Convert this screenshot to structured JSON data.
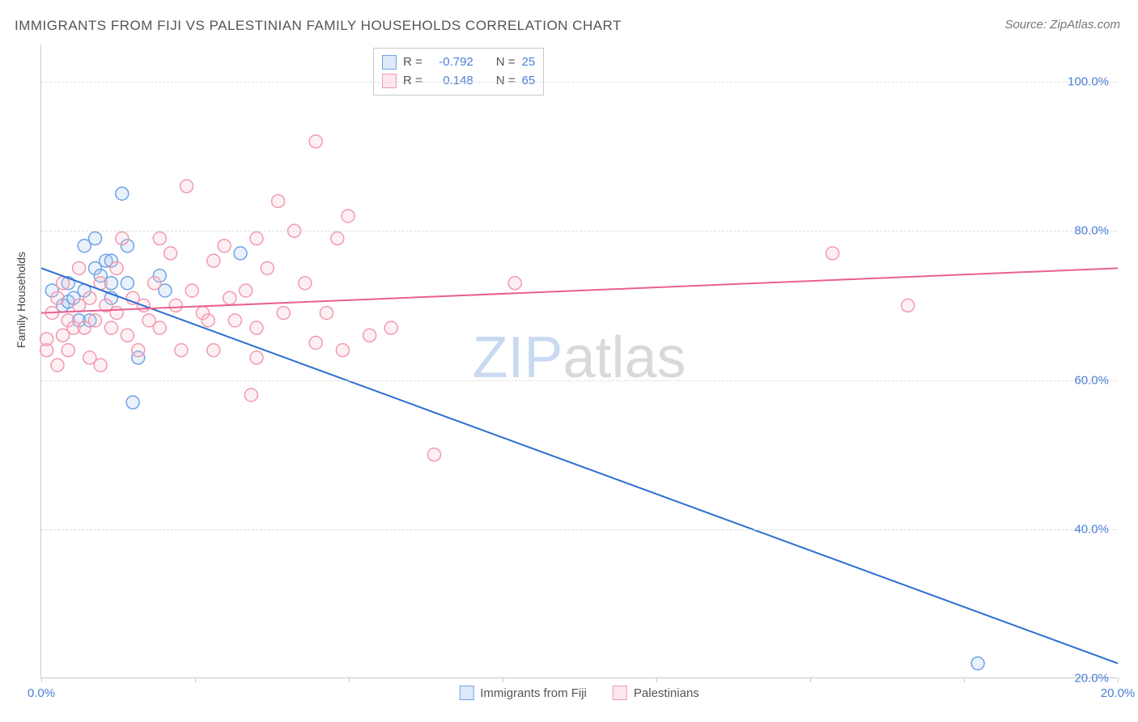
{
  "title": "IMMIGRANTS FROM FIJI VS PALESTINIAN FAMILY HOUSEHOLDS CORRELATION CHART",
  "source": "Source: ZipAtlas.com",
  "ylabel": "Family Households",
  "watermark": {
    "text_a": "ZIP",
    "text_b": "atlas",
    "color_a": "#c9d9f2",
    "color_b": "#d9d9d9"
  },
  "chart": {
    "type": "scatter",
    "background": "#ffffff",
    "grid_color": "#dcdcdc",
    "axis_color": "#c9c9c9",
    "xlim": [
      0,
      20
    ],
    "ylim": [
      20,
      105
    ],
    "marker_radius": 8,
    "x_ticks_major": [
      0,
      20
    ],
    "x_ticks_minor": [
      2.86,
      5.71,
      8.57,
      11.43,
      14.29,
      17.14
    ],
    "x_tick_labels": [
      {
        "v": 0,
        "label": "0.0%"
      },
      {
        "v": 20,
        "label": "20.0%"
      }
    ],
    "y_gridlines": [
      40,
      60,
      80,
      100
    ],
    "y_tick_labels": [
      {
        "v": 40,
        "label": "40.0%"
      },
      {
        "v": 60,
        "label": "60.0%"
      },
      {
        "v": 80,
        "label": "80.0%"
      },
      {
        "v": 100,
        "label": "100.0%"
      },
      {
        "v": 20,
        "label": "20.0%"
      }
    ],
    "series": [
      {
        "name": "Immigrants from Fiji",
        "color_stroke": "#6fa3e5",
        "color_fill": "#a9c8ef",
        "R": "-0.792",
        "N": "25",
        "trend": {
          "x1": 0,
          "y1": 75,
          "x2": 20,
          "y2": 22,
          "color": "#2c6fd1"
        },
        "points": [
          [
            0.2,
            72
          ],
          [
            0.4,
            70
          ],
          [
            0.5,
            70.5
          ],
          [
            0.5,
            73
          ],
          [
            0.6,
            71
          ],
          [
            0.7,
            68
          ],
          [
            0.8,
            78
          ],
          [
            0.8,
            72
          ],
          [
            1.0,
            75
          ],
          [
            1.0,
            79
          ],
          [
            1.1,
            74
          ],
          [
            1.2,
            76
          ],
          [
            1.3,
            71
          ],
          [
            1.3,
            73
          ],
          [
            1.3,
            76
          ],
          [
            1.5,
            85
          ],
          [
            1.6,
            78
          ],
          [
            1.6,
            73
          ],
          [
            1.8,
            63
          ],
          [
            2.2,
            74
          ],
          [
            2.3,
            72
          ],
          [
            1.7,
            57
          ],
          [
            3.7,
            77
          ],
          [
            17.4,
            22
          ],
          [
            0.9,
            68
          ]
        ]
      },
      {
        "name": "Palestinians",
        "color_stroke": "#f19ab0",
        "color_fill": "#f8c3d0",
        "R": "0.148",
        "N": "65",
        "trend": {
          "x1": 0,
          "y1": 69,
          "x2": 20,
          "y2": 75,
          "color": "#e96091"
        },
        "points": [
          [
            0.1,
            64
          ],
          [
            0.1,
            65.5
          ],
          [
            0.2,
            69
          ],
          [
            0.3,
            71
          ],
          [
            0.3,
            62
          ],
          [
            0.4,
            66
          ],
          [
            0.4,
            73
          ],
          [
            0.5,
            68
          ],
          [
            0.5,
            64
          ],
          [
            0.6,
            67
          ],
          [
            0.7,
            70
          ],
          [
            0.7,
            75
          ],
          [
            0.8,
            67
          ],
          [
            0.9,
            71
          ],
          [
            0.9,
            63
          ],
          [
            1.0,
            68
          ],
          [
            1.1,
            73
          ],
          [
            1.1,
            62
          ],
          [
            1.2,
            70
          ],
          [
            1.3,
            67
          ],
          [
            1.4,
            69
          ],
          [
            1.4,
            75
          ],
          [
            1.5,
            79
          ],
          [
            1.6,
            66
          ],
          [
            1.7,
            71
          ],
          [
            1.8,
            64
          ],
          [
            1.9,
            70
          ],
          [
            2.0,
            68
          ],
          [
            2.1,
            73
          ],
          [
            2.2,
            67
          ],
          [
            2.2,
            79
          ],
          [
            2.4,
            77
          ],
          [
            2.5,
            70
          ],
          [
            2.6,
            64
          ],
          [
            2.7,
            86
          ],
          [
            2.8,
            72
          ],
          [
            3.0,
            69
          ],
          [
            3.1,
            68
          ],
          [
            3.2,
            76
          ],
          [
            3.2,
            64
          ],
          [
            3.4,
            78
          ],
          [
            3.5,
            71
          ],
          [
            3.6,
            68
          ],
          [
            3.8,
            72
          ],
          [
            3.9,
            58
          ],
          [
            4.0,
            67
          ],
          [
            4.0,
            79
          ],
          [
            4.0,
            63
          ],
          [
            4.2,
            75
          ],
          [
            4.4,
            84
          ],
          [
            4.5,
            69
          ],
          [
            4.7,
            80
          ],
          [
            4.9,
            73
          ],
          [
            5.1,
            65
          ],
          [
            5.1,
            92
          ],
          [
            5.3,
            69
          ],
          [
            5.5,
            79
          ],
          [
            5.6,
            64
          ],
          [
            5.7,
            82
          ],
          [
            6.1,
            66
          ],
          [
            6.5,
            67
          ],
          [
            7.3,
            50
          ],
          [
            8.8,
            73
          ],
          [
            14.7,
            77
          ],
          [
            16.1,
            70
          ]
        ]
      }
    ],
    "legend_labels": {
      "r_prefix": "R = ",
      "n_prefix": "N = "
    },
    "value_color": "#4b7ed6",
    "label_color": "#555555"
  }
}
